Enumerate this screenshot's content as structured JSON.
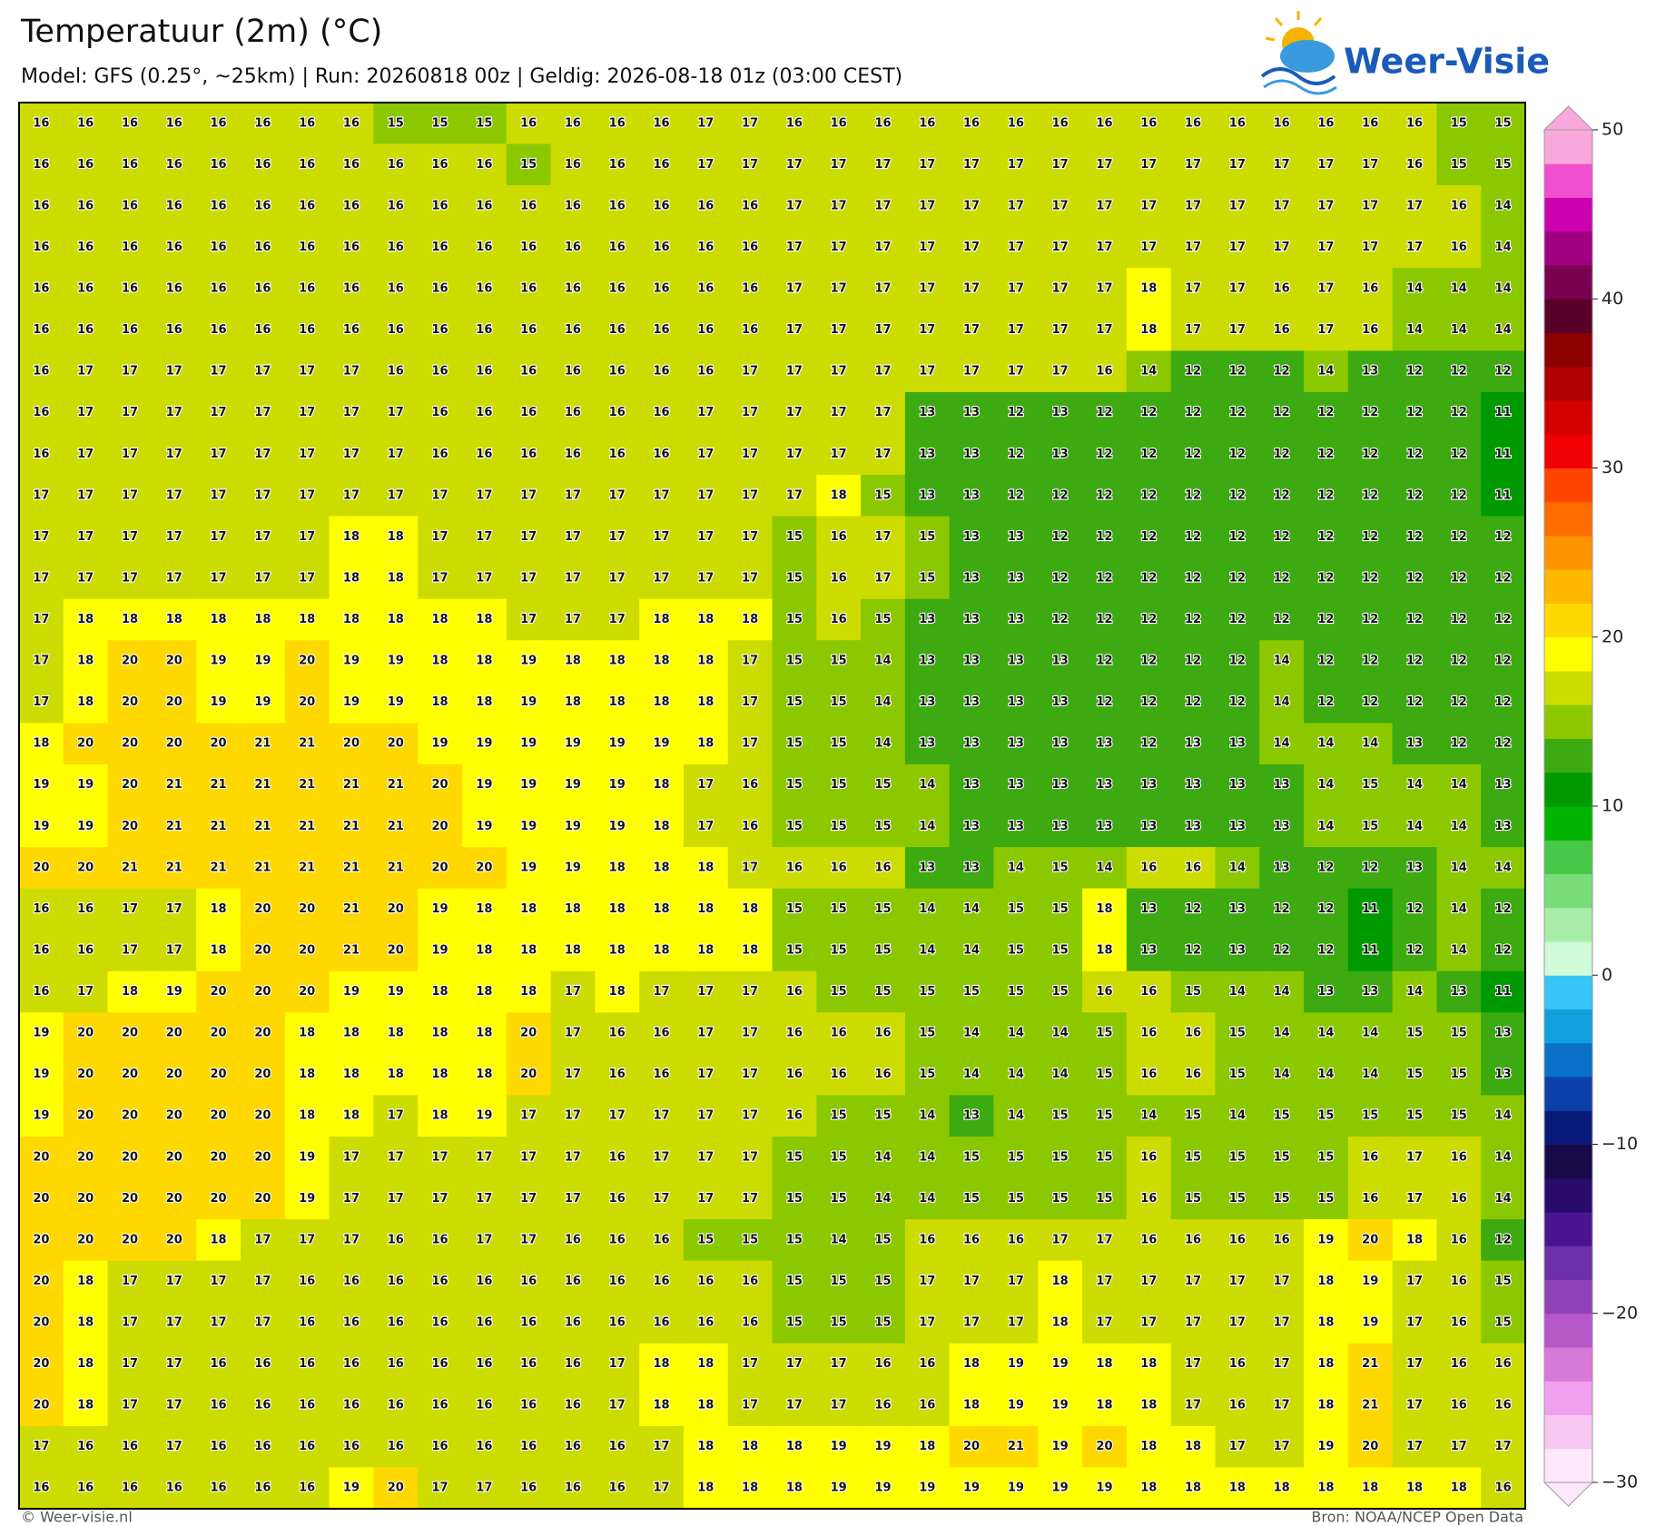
{
  "map": {
    "title": "Temperatuur (2m) (°C)",
    "subtitle": "Model: GFS (0.25°, ~25km)  |  Run: 20260818 00z  |  Geldig: 2026-08-18 01z (03:00 CEST)",
    "logo": "Weer-Visie",
    "footer_left": "© Weer-visie.nl",
    "footer_right": "Bron: NOAA/NCEP Open Data",
    "grid": {
      "rows": [
        [
          16,
          16,
          16,
          16,
          16,
          16,
          16,
          16,
          15,
          15,
          15,
          16,
          16,
          16,
          16,
          17,
          17,
          16,
          16,
          16,
          16,
          16,
          16,
          16,
          16,
          16,
          16,
          16,
          16,
          16,
          16,
          16,
          15,
          15
        ],
        [
          16,
          16,
          16,
          16,
          16,
          16,
          16,
          16,
          16,
          16,
          16,
          15,
          16,
          16,
          16,
          17,
          17,
          17,
          17,
          17,
          17,
          17,
          17,
          17,
          17,
          17,
          17,
          17,
          17,
          17,
          17,
          16,
          15,
          15
        ],
        [
          16,
          16,
          16,
          16,
          16,
          16,
          16,
          16,
          16,
          16,
          16,
          16,
          16,
          16,
          16,
          16,
          16,
          17,
          17,
          17,
          17,
          17,
          17,
          17,
          17,
          17,
          17,
          17,
          17,
          17,
          17,
          17,
          16,
          14
        ],
        [
          16,
          16,
          16,
          16,
          16,
          16,
          16,
          16,
          16,
          16,
          16,
          16,
          16,
          16,
          16,
          16,
          16,
          17,
          17,
          17,
          17,
          17,
          17,
          17,
          17,
          17,
          17,
          17,
          17,
          17,
          17,
          17,
          16,
          14
        ],
        [
          16,
          16,
          16,
          16,
          16,
          16,
          16,
          16,
          16,
          16,
          16,
          16,
          16,
          16,
          16,
          16,
          16,
          17,
          17,
          17,
          17,
          17,
          17,
          17,
          17,
          18,
          17,
          17,
          16,
          17,
          16,
          14,
          14,
          14
        ],
        [
          16,
          16,
          16,
          16,
          16,
          16,
          16,
          16,
          16,
          16,
          16,
          16,
          16,
          16,
          16,
          16,
          16,
          17,
          17,
          17,
          17,
          17,
          17,
          17,
          17,
          18,
          17,
          17,
          16,
          17,
          16,
          14,
          14,
          14
        ],
        [
          16,
          17,
          17,
          17,
          17,
          17,
          17,
          17,
          16,
          16,
          16,
          16,
          16,
          16,
          16,
          16,
          17,
          17,
          17,
          17,
          17,
          17,
          17,
          17,
          16,
          14,
          12,
          12,
          12,
          14,
          13,
          12,
          12,
          12
        ],
        [
          16,
          17,
          17,
          17,
          17,
          17,
          17,
          17,
          17,
          16,
          16,
          16,
          16,
          16,
          16,
          17,
          17,
          17,
          17,
          17,
          13,
          13,
          12,
          13,
          12,
          12,
          12,
          12,
          12,
          12,
          12,
          12,
          12,
          11
        ],
        [
          16,
          17,
          17,
          17,
          17,
          17,
          17,
          17,
          17,
          16,
          16,
          16,
          16,
          16,
          16,
          17,
          17,
          17,
          17,
          17,
          13,
          13,
          12,
          13,
          12,
          12,
          12,
          12,
          12,
          12,
          12,
          12,
          12,
          11
        ],
        [
          17,
          17,
          17,
          17,
          17,
          17,
          17,
          17,
          17,
          17,
          17,
          17,
          17,
          17,
          17,
          17,
          17,
          17,
          18,
          15,
          13,
          13,
          12,
          12,
          12,
          12,
          12,
          12,
          12,
          12,
          12,
          12,
          12,
          11
        ],
        [
          17,
          17,
          17,
          17,
          17,
          17,
          17,
          18,
          18,
          17,
          17,
          17,
          17,
          17,
          17,
          17,
          17,
          15,
          16,
          17,
          15,
          13,
          13,
          12,
          12,
          12,
          12,
          12,
          12,
          12,
          12,
          12,
          12,
          12
        ],
        [
          17,
          17,
          17,
          17,
          17,
          17,
          17,
          18,
          18,
          17,
          17,
          17,
          17,
          17,
          17,
          17,
          17,
          15,
          16,
          17,
          15,
          13,
          13,
          12,
          12,
          12,
          12,
          12,
          12,
          12,
          12,
          12,
          12,
          12
        ],
        [
          17,
          18,
          18,
          18,
          18,
          18,
          18,
          18,
          18,
          18,
          18,
          17,
          17,
          17,
          18,
          18,
          18,
          15,
          16,
          15,
          13,
          13,
          13,
          12,
          12,
          12,
          12,
          12,
          12,
          12,
          12,
          12,
          12,
          12
        ],
        [
          17,
          18,
          20,
          20,
          19,
          19,
          20,
          19,
          19,
          18,
          18,
          19,
          18,
          18,
          18,
          18,
          17,
          15,
          15,
          14,
          13,
          13,
          13,
          13,
          12,
          12,
          12,
          12,
          14,
          12,
          12,
          12,
          12,
          12
        ],
        [
          17,
          18,
          20,
          20,
          19,
          19,
          20,
          19,
          19,
          18,
          18,
          19,
          18,
          18,
          18,
          18,
          17,
          15,
          15,
          14,
          13,
          13,
          13,
          13,
          12,
          12,
          12,
          12,
          14,
          12,
          12,
          12,
          12,
          12
        ],
        [
          18,
          20,
          20,
          20,
          20,
          21,
          21,
          20,
          20,
          19,
          19,
          19,
          19,
          19,
          19,
          18,
          17,
          15,
          15,
          14,
          13,
          13,
          13,
          13,
          13,
          12,
          13,
          13,
          14,
          14,
          14,
          13,
          12,
          12
        ],
        [
          19,
          19,
          20,
          21,
          21,
          21,
          21,
          21,
          21,
          20,
          19,
          19,
          19,
          19,
          18,
          17,
          16,
          15,
          15,
          15,
          14,
          13,
          13,
          13,
          13,
          13,
          13,
          13,
          13,
          14,
          15,
          14,
          14,
          13
        ],
        [
          19,
          19,
          20,
          21,
          21,
          21,
          21,
          21,
          21,
          20,
          19,
          19,
          19,
          19,
          18,
          17,
          16,
          15,
          15,
          15,
          14,
          13,
          13,
          13,
          13,
          13,
          13,
          13,
          13,
          14,
          15,
          14,
          14,
          13
        ],
        [
          20,
          20,
          21,
          21,
          21,
          21,
          21,
          21,
          21,
          20,
          20,
          19,
          19,
          18,
          18,
          18,
          17,
          16,
          16,
          16,
          13,
          13,
          14,
          15,
          14,
          16,
          16,
          14,
          13,
          12,
          12,
          13,
          14,
          14
        ],
        [
          16,
          16,
          17,
          17,
          18,
          20,
          20,
          21,
          20,
          19,
          18,
          18,
          18,
          18,
          18,
          18,
          18,
          15,
          15,
          15,
          14,
          14,
          15,
          15,
          18,
          13,
          12,
          13,
          12,
          12,
          11,
          12,
          14,
          12
        ],
        [
          16,
          16,
          17,
          17,
          18,
          20,
          20,
          21,
          20,
          19,
          18,
          18,
          18,
          18,
          18,
          18,
          18,
          15,
          15,
          15,
          14,
          14,
          15,
          15,
          18,
          13,
          12,
          13,
          12,
          12,
          11,
          12,
          14,
          12
        ],
        [
          16,
          17,
          18,
          19,
          20,
          20,
          20,
          19,
          19,
          18,
          18,
          18,
          17,
          18,
          17,
          17,
          17,
          16,
          15,
          15,
          15,
          15,
          15,
          15,
          16,
          16,
          15,
          14,
          14,
          13,
          13,
          14,
          13,
          11
        ],
        [
          19,
          20,
          20,
          20,
          20,
          20,
          18,
          18,
          18,
          18,
          18,
          20,
          17,
          16,
          16,
          17,
          17,
          16,
          16,
          16,
          15,
          14,
          14,
          14,
          15,
          16,
          16,
          15,
          14,
          14,
          14,
          15,
          15,
          13
        ],
        [
          19,
          20,
          20,
          20,
          20,
          20,
          18,
          18,
          18,
          18,
          18,
          20,
          17,
          16,
          16,
          17,
          17,
          16,
          16,
          16,
          15,
          14,
          14,
          14,
          15,
          16,
          16,
          15,
          14,
          14,
          14,
          15,
          15,
          13
        ],
        [
          19,
          20,
          20,
          20,
          20,
          20,
          18,
          18,
          17,
          18,
          19,
          17,
          17,
          17,
          17,
          17,
          17,
          16,
          15,
          15,
          14,
          13,
          14,
          15,
          15,
          14,
          15,
          14,
          15,
          15,
          15,
          15,
          15,
          14
        ],
        [
          20,
          20,
          20,
          20,
          20,
          20,
          19,
          17,
          17,
          17,
          17,
          17,
          17,
          16,
          17,
          17,
          17,
          15,
          15,
          14,
          14,
          15,
          15,
          15,
          15,
          16,
          15,
          15,
          15,
          15,
          16,
          17,
          16,
          14
        ],
        [
          20,
          20,
          20,
          20,
          20,
          20,
          19,
          17,
          17,
          17,
          17,
          17,
          17,
          16,
          17,
          17,
          17,
          15,
          15,
          14,
          14,
          15,
          15,
          15,
          15,
          16,
          15,
          15,
          15,
          15,
          16,
          17,
          16,
          14
        ],
        [
          20,
          20,
          20,
          20,
          18,
          17,
          17,
          17,
          16,
          16,
          17,
          17,
          16,
          16,
          16,
          15,
          15,
          15,
          14,
          15,
          16,
          16,
          16,
          17,
          17,
          16,
          16,
          16,
          16,
          19,
          20,
          18,
          16,
          12
        ],
        [
          20,
          18,
          17,
          17,
          17,
          17,
          16,
          16,
          16,
          16,
          16,
          16,
          16,
          16,
          16,
          16,
          16,
          15,
          15,
          15,
          17,
          17,
          17,
          18,
          17,
          17,
          17,
          17,
          17,
          18,
          19,
          17,
          16,
          15
        ],
        [
          20,
          18,
          17,
          17,
          17,
          17,
          16,
          16,
          16,
          16,
          16,
          16,
          16,
          16,
          16,
          16,
          16,
          15,
          15,
          15,
          17,
          17,
          17,
          18,
          17,
          17,
          17,
          17,
          17,
          18,
          19,
          17,
          16,
          15
        ],
        [
          20,
          18,
          17,
          17,
          16,
          16,
          16,
          16,
          16,
          16,
          16,
          16,
          16,
          17,
          18,
          18,
          17,
          17,
          17,
          16,
          16,
          18,
          19,
          19,
          18,
          18,
          17,
          16,
          17,
          18,
          21,
          17,
          16,
          16
        ],
        [
          20,
          18,
          17,
          17,
          16,
          16,
          16,
          16,
          16,
          16,
          16,
          16,
          16,
          17,
          18,
          18,
          17,
          17,
          17,
          16,
          16,
          18,
          19,
          19,
          18,
          18,
          17,
          16,
          17,
          18,
          21,
          17,
          16,
          16
        ],
        [
          17,
          16,
          16,
          17,
          16,
          16,
          16,
          16,
          16,
          16,
          16,
          16,
          16,
          16,
          17,
          18,
          18,
          18,
          19,
          19,
          18,
          20,
          21,
          19,
          20,
          18,
          18,
          17,
          17,
          19,
          20,
          17,
          17,
          17
        ],
        [
          16,
          16,
          16,
          16,
          16,
          16,
          16,
          19,
          20,
          17,
          17,
          16,
          16,
          16,
          17,
          18,
          18,
          18,
          19,
          19,
          19,
          19,
          19,
          19,
          19,
          18,
          18,
          18,
          18,
          18,
          18,
          18,
          18,
          16
        ]
      ]
    },
    "colorbar": {
      "lim": [
        -30,
        50
      ],
      "ticks": [
        50,
        40,
        30,
        20,
        10,
        0,
        {
          "value": -10,
          "label": "−10"
        },
        {
          "value": -20,
          "label": "−20"
        },
        {
          "value": -30,
          "label": "−30"
        }
      ],
      "colors": [
        "#fde8fa",
        "#f8c8f4",
        "#f0a0ec",
        "#d878d8",
        "#b858c8",
        "#9040b8",
        "#6c30a8",
        "#4a1490",
        "#2a0a6a",
        "#180a48",
        "#0a1a78",
        "#0a40a8",
        "#0a70c8",
        "#10a0e0",
        "#38c4f4",
        "#d0fad8",
        "#a8eea8",
        "#78dc78",
        "#48c848",
        "#00b400",
        "#009a00",
        "#3caa10",
        "#8cc800",
        "#cddc00",
        "#ffff00",
        "#ffd800",
        "#ffb800",
        "#ff9400",
        "#ff6c00",
        "#ff4400",
        "#f00000",
        "#d40000",
        "#b00000",
        "#8c0000",
        "#5a0028",
        "#7a0050",
        "#a00080",
        "#cc00b0",
        "#f050d0",
        "#f8a8dc"
      ]
    }
  }
}
